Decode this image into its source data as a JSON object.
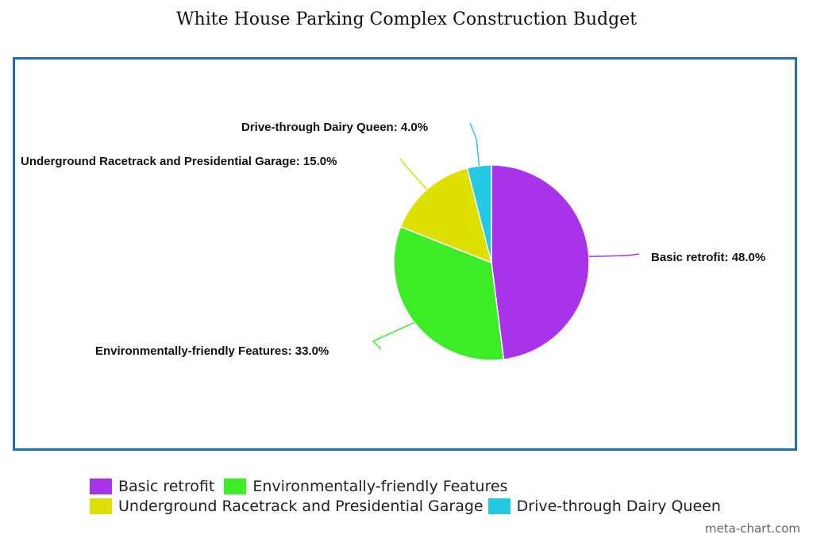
{
  "chart_data": {
    "type": "pie",
    "title": "White House Parking Complex Construction Budget",
    "slices": [
      {
        "label": "Basic retrofit",
        "value": 48.0,
        "color": "#a933e8"
      },
      {
        "label": "Environmentally-friendly Features",
        "value": 33.0,
        "color": "#3bec27"
      },
      {
        "label": "Underground Racetrack and Presidential Garage",
        "value": 15.0,
        "color": "#dee000"
      },
      {
        "label": "Drive-through Dairy Queen",
        "value": 4.0,
        "color": "#24c9e4"
      }
    ],
    "data_labels": [
      "Basic retrofit: 48.0%",
      "Environmentally-friendly Features: 33.0%",
      "Underground Racetrack and Presidential Garage: 15.0%",
      "Drive-through Dairy Queen: 4.0%"
    ],
    "legend_position": "bottom",
    "frame_color": "#1f6fb8"
  },
  "legend": {
    "items": [
      {
        "label": "Basic retrofit",
        "color": "#a933e8"
      },
      {
        "label": "Environmentally-friendly Features",
        "color": "#3bec27"
      },
      {
        "label": "Underground Racetrack and Presidential Garage",
        "color": "#dee000"
      },
      {
        "label": "Drive-through Dairy Queen",
        "color": "#24c9e4"
      }
    ]
  },
  "watermark": "meta-chart.com"
}
